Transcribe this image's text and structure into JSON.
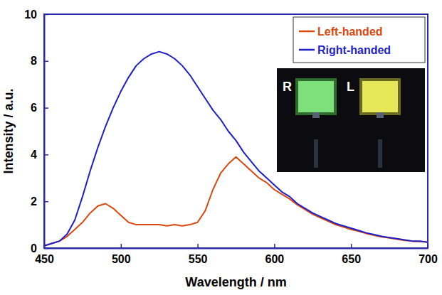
{
  "chart_data": {
    "type": "line",
    "x_label": "Wavelength / nm",
    "y_label": "Intensity / a.u.",
    "x": [
      450,
      455,
      460,
      465,
      470,
      475,
      480,
      485,
      490,
      495,
      500,
      505,
      510,
      515,
      520,
      525,
      530,
      535,
      540,
      545,
      550,
      555,
      560,
      565,
      570,
      575,
      580,
      585,
      590,
      595,
      600,
      605,
      610,
      615,
      620,
      625,
      630,
      635,
      640,
      645,
      650,
      655,
      660,
      665,
      670,
      675,
      680,
      685,
      690,
      695,
      700
    ],
    "series": [
      {
        "name": "Left-handed",
        "color": "#d9480f",
        "values": [
          0.1,
          0.2,
          0.3,
          0.5,
          0.8,
          1.1,
          1.5,
          1.8,
          1.9,
          1.7,
          1.4,
          1.1,
          1.0,
          1.0,
          1.0,
          1.0,
          0.95,
          1.0,
          0.95,
          1.0,
          1.1,
          1.6,
          2.5,
          3.2,
          3.6,
          3.9,
          3.6,
          3.3,
          3.0,
          2.8,
          2.5,
          2.3,
          2.1,
          1.85,
          1.65,
          1.45,
          1.3,
          1.15,
          1.0,
          0.9,
          0.8,
          0.72,
          0.62,
          0.55,
          0.48,
          0.43,
          0.38,
          0.33,
          0.3,
          0.28,
          0.25
        ]
      },
      {
        "name": "Right-handed",
        "color": "#1f1fc8",
        "values": [
          0.1,
          0.2,
          0.3,
          0.6,
          1.2,
          2.2,
          3.3,
          4.3,
          5.2,
          6.0,
          6.7,
          7.3,
          7.8,
          8.1,
          8.3,
          8.4,
          8.3,
          8.1,
          7.8,
          7.4,
          6.9,
          6.4,
          5.9,
          5.5,
          5.0,
          4.6,
          4.1,
          3.7,
          3.3,
          3.0,
          2.7,
          2.4,
          2.2,
          1.9,
          1.7,
          1.5,
          1.35,
          1.2,
          1.05,
          0.95,
          0.85,
          0.75,
          0.65,
          0.58,
          0.5,
          0.45,
          0.4,
          0.35,
          0.3,
          0.3,
          0.25
        ]
      }
    ],
    "xlim": [
      450,
      700
    ],
    "xticks": [
      450,
      500,
      550,
      600,
      650,
      700
    ],
    "ylim": [
      0,
      10
    ],
    "yticks": [
      0,
      2,
      4,
      6,
      8,
      10
    ],
    "grid": false,
    "legend": "upper right",
    "annotations": [
      "R",
      "L"
    ]
  }
}
